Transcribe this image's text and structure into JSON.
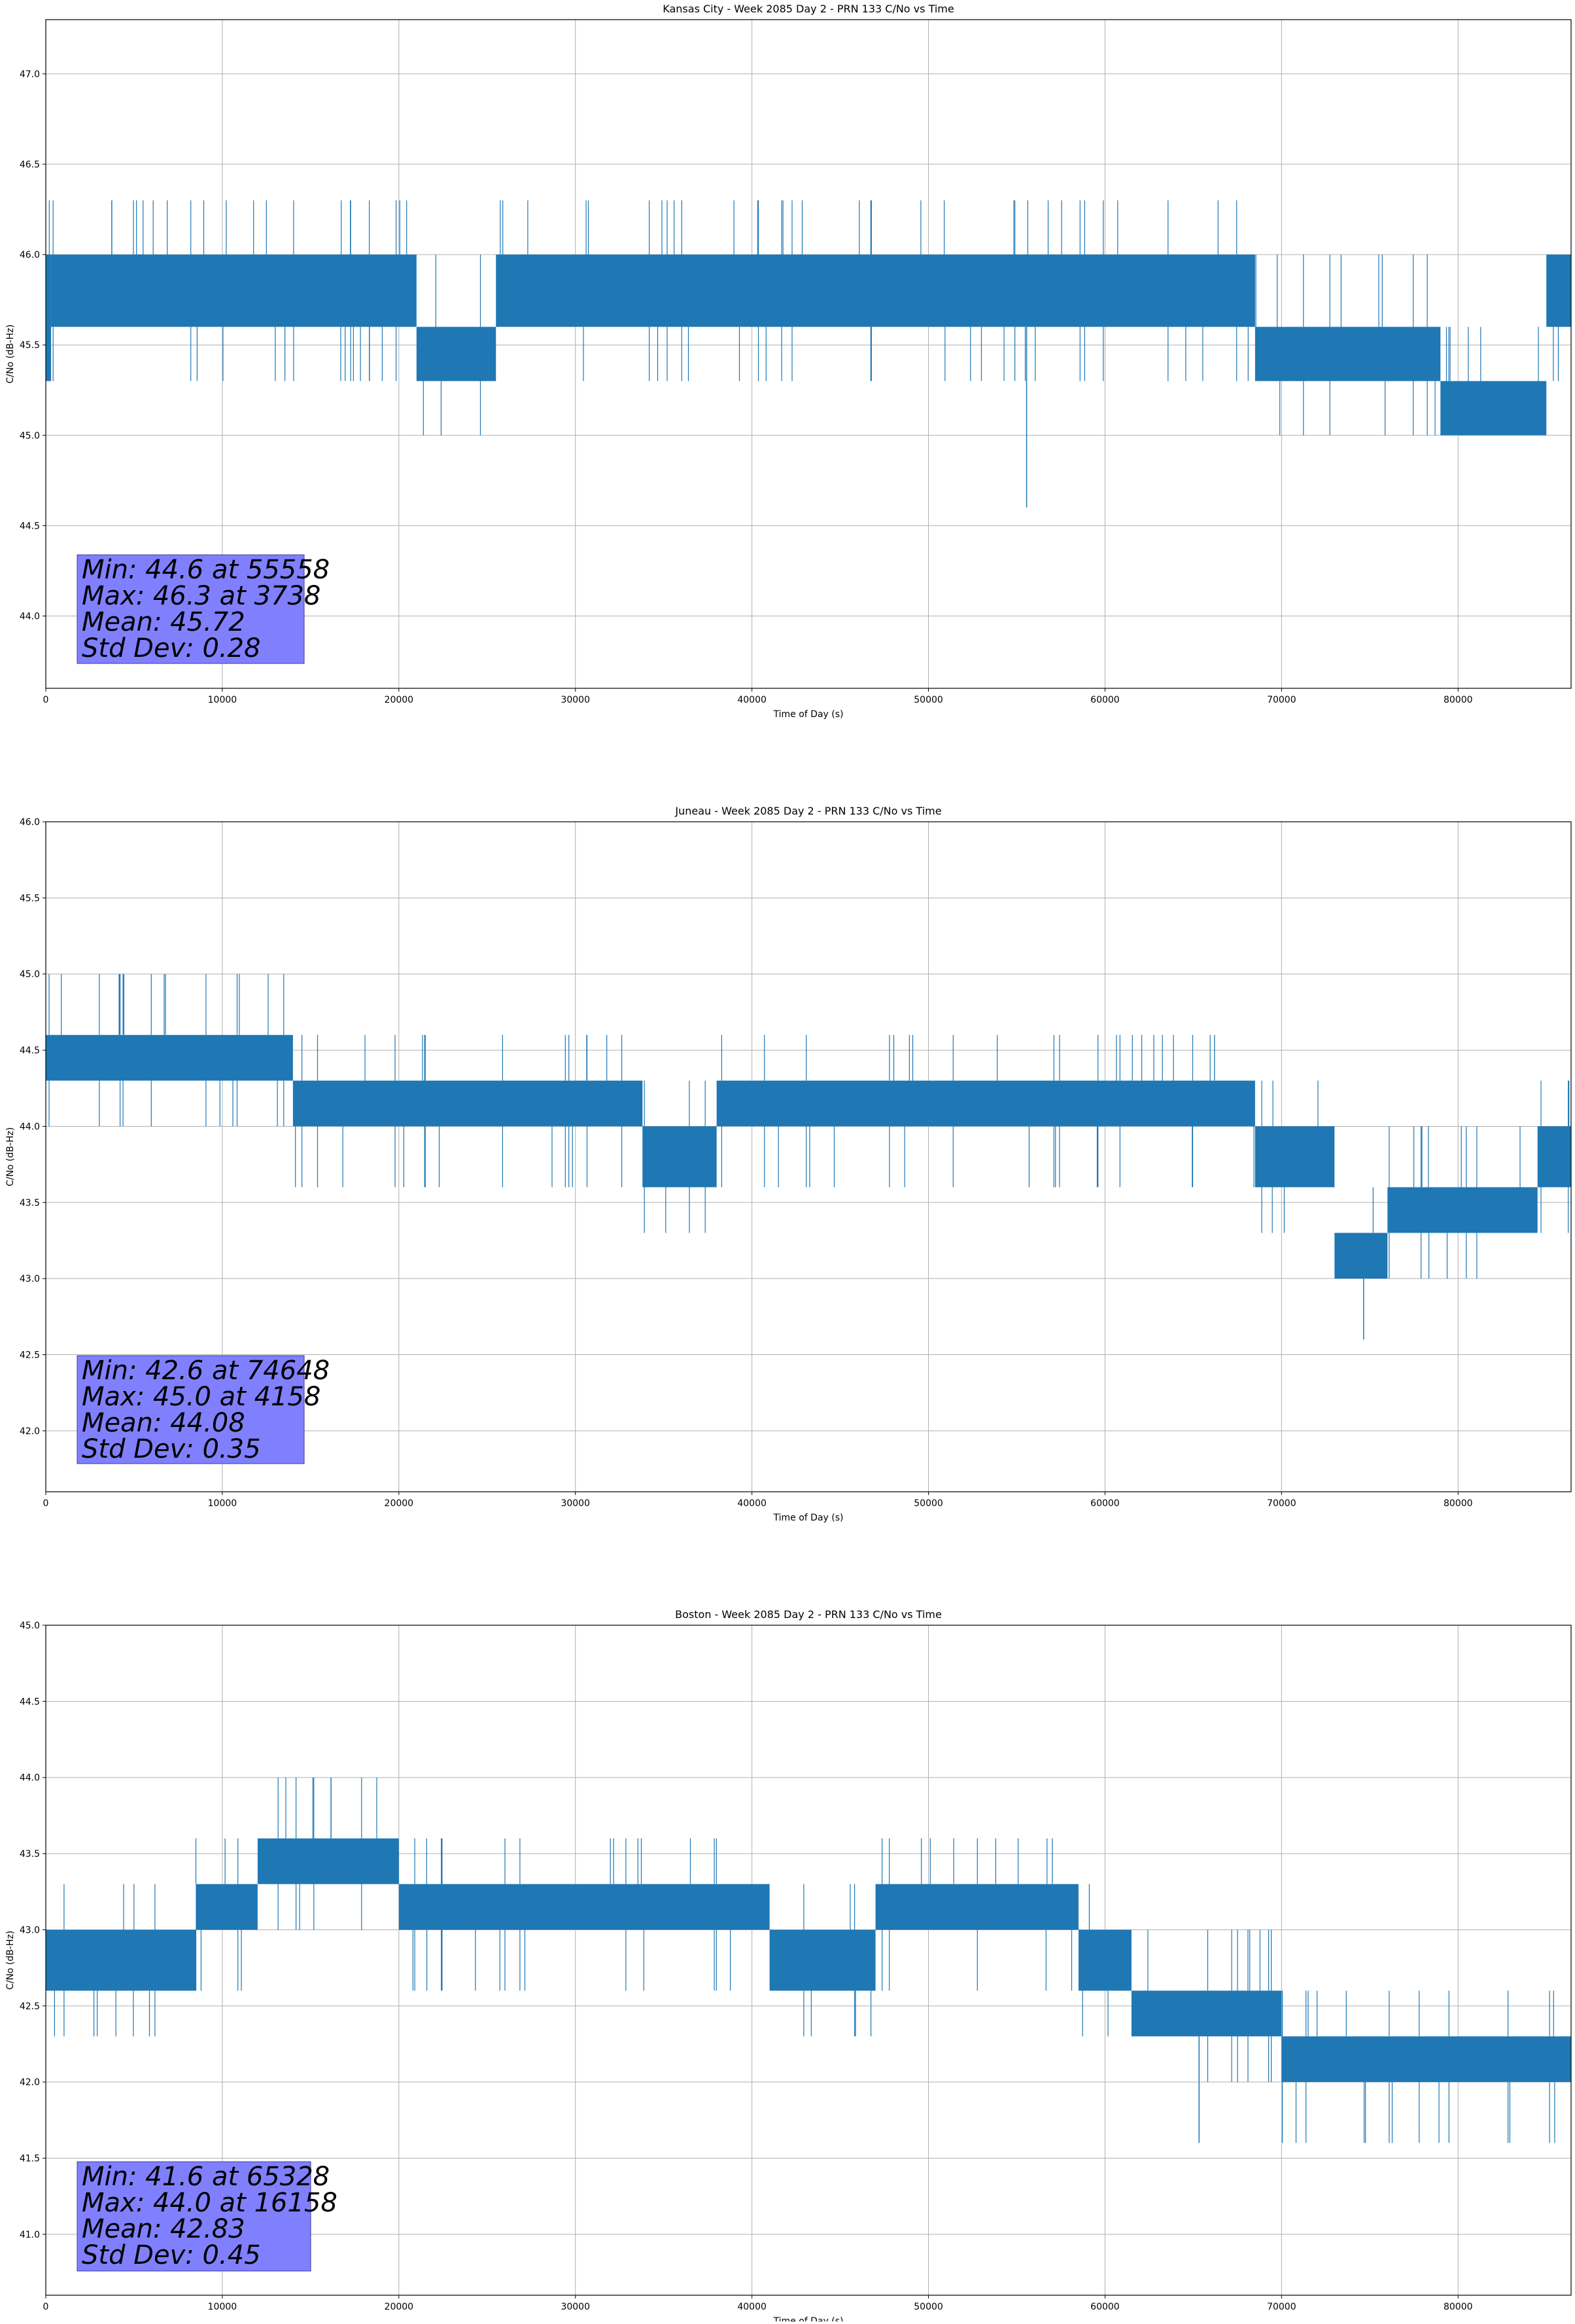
{
  "chart_data": [
    {
      "type": "line",
      "title": "Kansas City - Week 2085 Day 2 - PRN 133 C/No vs Time",
      "xlabel": "Time of Day (s)",
      "ylabel": "C/No (dB-Hz)",
      "xlim": [
        0,
        86400
      ],
      "ylim": [
        43.6,
        47.3
      ],
      "xticks": [
        0,
        10000,
        20000,
        30000,
        40000,
        50000,
        60000,
        70000,
        80000
      ],
      "yticks": [
        44.0,
        44.5,
        45.0,
        45.5,
        46.0,
        46.5,
        47.0
      ],
      "grid": true,
      "color": "#1f77b4",
      "levels": [
        45.0,
        45.3,
        45.6,
        46.0,
        46.3
      ],
      "segments": [
        {
          "x": [
            0,
            300
          ],
          "lo": 45.3,
          "hi": 46.0
        },
        {
          "x": [
            300,
            21000
          ],
          "lo": 45.6,
          "hi": 46.0
        },
        {
          "x": [
            21000,
            25500
          ],
          "lo": 45.3,
          "hi": 45.6
        },
        {
          "x": [
            25500,
            68500
          ],
          "lo": 45.6,
          "hi": 46.0
        },
        {
          "x": [
            68500,
            79000
          ],
          "lo": 45.3,
          "hi": 45.6
        },
        {
          "x": [
            79000,
            85000
          ],
          "lo": 45.0,
          "hi": 45.3
        },
        {
          "x": [
            85000,
            86400
          ],
          "lo": 45.6,
          "hi": 46.0
        }
      ],
      "extremes": [
        {
          "x": 55558,
          "y": 44.6
        },
        {
          "x": 3738,
          "y": 46.3
        }
      ],
      "stats": {
        "min": "Min: 44.6 at 55558",
        "max": "Max: 46.3 at 3738",
        "mean": "Mean: 45.72",
        "std": "Std Dev: 0.28"
      }
    },
    {
      "type": "line",
      "title": "Juneau - Week 2085 Day 2 - PRN 133 C/No vs Time",
      "xlabel": "Time of Day (s)",
      "ylabel": "C/No (dB-Hz)",
      "xlim": [
        0,
        86400
      ],
      "ylim": [
        41.6,
        46.0
      ],
      "xticks": [
        0,
        10000,
        20000,
        30000,
        40000,
        50000,
        60000,
        70000,
        80000
      ],
      "yticks": [
        42.0,
        42.5,
        43.0,
        43.5,
        44.0,
        44.5,
        45.0,
        45.5,
        46.0
      ],
      "grid": true,
      "color": "#1f77b4",
      "levels": [
        43.0,
        43.3,
        43.6,
        44.0,
        44.3,
        44.6,
        45.0
      ],
      "segments": [
        {
          "x": [
            0,
            14000
          ],
          "lo": 44.3,
          "hi": 44.6
        },
        {
          "x": [
            14000,
            33800
          ],
          "lo": 44.0,
          "hi": 44.3
        },
        {
          "x": [
            33800,
            38000
          ],
          "lo": 43.6,
          "hi": 44.0
        },
        {
          "x": [
            38000,
            68500
          ],
          "lo": 44.0,
          "hi": 44.3
        },
        {
          "x": [
            68500,
            73000
          ],
          "lo": 43.6,
          "hi": 44.0
        },
        {
          "x": [
            73000,
            76000
          ],
          "lo": 43.0,
          "hi": 43.3
        },
        {
          "x": [
            76000,
            84500
          ],
          "lo": 43.3,
          "hi": 43.6
        },
        {
          "x": [
            84500,
            86400
          ],
          "lo": 43.6,
          "hi": 44.0
        }
      ],
      "extremes": [
        {
          "x": 74648,
          "y": 42.6
        },
        {
          "x": 4158,
          "y": 45.0
        }
      ],
      "stats": {
        "min": "Min: 42.6 at 74648",
        "max": "Max: 45.0 at 4158",
        "mean": "Mean: 44.08",
        "std": "Std Dev: 0.35"
      }
    },
    {
      "type": "line",
      "title": "Boston - Week 2085 Day 2 - PRN 133 C/No vs Time",
      "xlabel": "Time of Day (s)",
      "ylabel": "C/No (dB-Hz)",
      "xlim": [
        0,
        86400
      ],
      "ylim": [
        40.6,
        45.0
      ],
      "xticks": [
        0,
        10000,
        20000,
        30000,
        40000,
        50000,
        60000,
        70000,
        80000
      ],
      "yticks": [
        41.0,
        41.5,
        42.0,
        42.5,
        43.0,
        43.5,
        44.0,
        44.5,
        45.0
      ],
      "grid": true,
      "color": "#1f77b4",
      "levels": [
        41.6,
        42.0,
        42.3,
        42.6,
        43.0,
        43.3,
        43.6,
        44.0
      ],
      "segments": [
        {
          "x": [
            0,
            8500
          ],
          "lo": 42.6,
          "hi": 43.0
        },
        {
          "x": [
            8500,
            12000
          ],
          "lo": 43.0,
          "hi": 43.3
        },
        {
          "x": [
            12000,
            20000
          ],
          "lo": 43.3,
          "hi": 43.6
        },
        {
          "x": [
            20000,
            41000
          ],
          "lo": 43.0,
          "hi": 43.3
        },
        {
          "x": [
            41000,
            47000
          ],
          "lo": 42.6,
          "hi": 43.0
        },
        {
          "x": [
            47000,
            54000
          ],
          "lo": 43.0,
          "hi": 43.3
        },
        {
          "x": [
            54000,
            58500
          ],
          "lo": 43.0,
          "hi": 43.3
        },
        {
          "x": [
            58500,
            61500
          ],
          "lo": 42.6,
          "hi": 43.0
        },
        {
          "x": [
            61500,
            70000
          ],
          "lo": 42.3,
          "hi": 42.6
        },
        {
          "x": [
            70000,
            86400
          ],
          "lo": 42.0,
          "hi": 42.3
        }
      ],
      "extremes": [
        {
          "x": 65328,
          "y": 41.6
        },
        {
          "x": 16158,
          "y": 44.0
        }
      ],
      "stats": {
        "min": "Min: 41.6 at 65328",
        "max": "Max: 44.0 at 16158",
        "mean": "Mean: 42.83",
        "std": "Std Dev: 0.45"
      }
    }
  ]
}
